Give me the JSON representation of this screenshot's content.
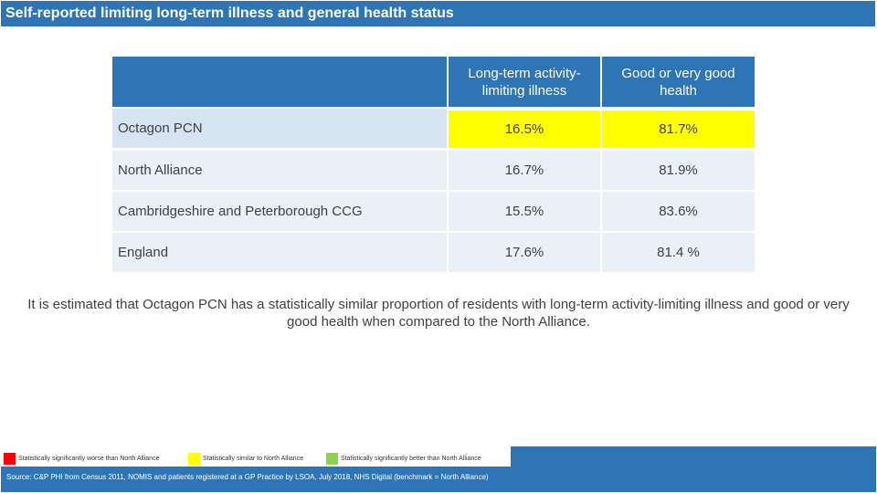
{
  "title": "Self-reported limiting long-term illness and general health status",
  "table": {
    "headers": [
      "",
      "Long-term activity-limiting illness",
      "Good or very good health"
    ],
    "rows": [
      {
        "label": "Octagon PCN",
        "ltal": "16.5%",
        "health": "81.7%"
      },
      {
        "label": "North Alliance",
        "ltal": "16.7%",
        "health": "81.9%"
      },
      {
        "label": "Cambridgeshire and Peterborough CCG",
        "ltal": "15.5%",
        "health": "83.6%"
      },
      {
        "label": "England",
        "ltal": "17.6%",
        "health": "81.4 %"
      }
    ]
  },
  "summary": "It is estimated that Octagon PCN has a statistically similar proportion of residents with long-term activity-limiting illness and good or very good health when compared to the North Alliance.",
  "legend": [
    {
      "label": "Statistically significantly worse than North Alliance",
      "color": "#ff0000"
    },
    {
      "label": "Statistically similar to North Alliance",
      "color": "#ffff00"
    },
    {
      "label": "Statistically significantly better than North Alliance",
      "color": "#92d050"
    }
  ],
  "source": "Source: C&P PHI from Census 2011, NOMIS and patients registered at a GP Practice by LSOA, July 2018, NHS Digital (benchmark = North Alliance)"
}
